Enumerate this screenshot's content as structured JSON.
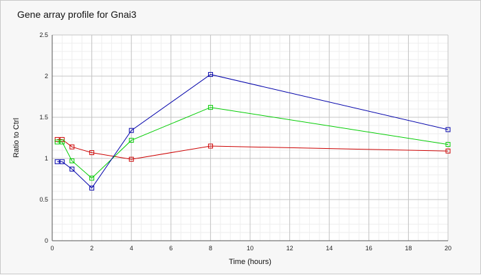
{
  "chart_data": {
    "type": "line",
    "title": "Gene array profile for Gnai3",
    "xlabel": "Time (hours)",
    "ylabel": "Ratio to Ctrl",
    "xlim": [
      0,
      20
    ],
    "ylim": [
      0,
      2.5
    ],
    "xticks": [
      0,
      2,
      4,
      6,
      8,
      10,
      12,
      14,
      16,
      18,
      20
    ],
    "yticks": [
      0,
      0.5,
      1,
      1.5,
      2,
      2.5
    ],
    "xtick_labels": [
      "0",
      "2",
      "4",
      "6",
      "8",
      "10",
      "12",
      "14",
      "16",
      "18",
      "20"
    ],
    "ytick_labels": [
      "0",
      "0.5",
      "1",
      "1.5",
      "2",
      "2.5"
    ],
    "grid": true,
    "legend": "none",
    "series": [
      {
        "color": "#cc0000",
        "x": [
          0.25,
          0.5,
          1,
          2,
          4,
          8,
          20
        ],
        "y": [
          1.23,
          1.23,
          1.14,
          1.07,
          0.99,
          1.15,
          1.09
        ]
      },
      {
        "color": "#00cc00",
        "x": [
          0.25,
          0.5,
          1,
          2,
          4,
          8,
          20
        ],
        "y": [
          1.2,
          1.2,
          0.97,
          0.76,
          1.22,
          1.62,
          1.17
        ]
      },
      {
        "color": "#0000aa",
        "x": [
          0.25,
          0.5,
          1,
          2,
          4,
          8,
          20
        ],
        "y": [
          0.96,
          0.96,
          0.87,
          0.64,
          1.34,
          2.02,
          1.35
        ]
      }
    ]
  }
}
